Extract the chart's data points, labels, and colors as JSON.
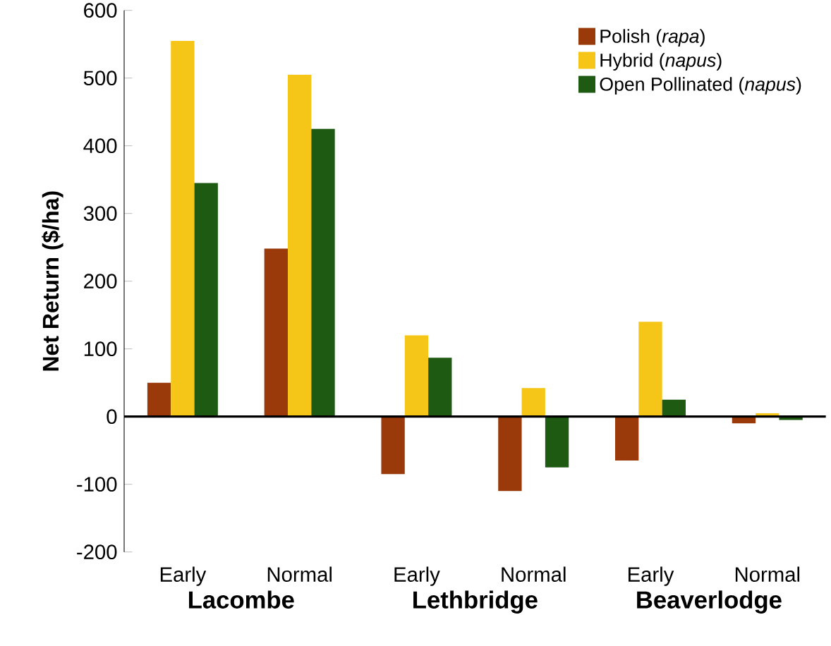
{
  "chart_data": {
    "type": "bar",
    "ylabel": "Net Return ($/ha)",
    "categories": [
      "Early",
      "Normal",
      "Early",
      "Normal",
      "Early",
      "Normal"
    ],
    "series": [
      {
        "name": "Polish (*rapa*)",
        "color": "#9a3a0a",
        "values": [
          50,
          248,
          -85,
          -110,
          -65,
          -10
        ]
      },
      {
        "name": "Hybrid (*napus*)",
        "color": "#f5c518",
        "values": [
          555,
          505,
          120,
          42,
          140,
          5
        ]
      },
      {
        "name": "Open Pollinated (*napus*)",
        "color": "#1e5a12",
        "values": [
          345,
          425,
          87,
          -75,
          25,
          -5
        ]
      }
    ],
    "ylim": [
      -200,
      600
    ],
    "yticks": [
      -200,
      -100,
      0,
      100,
      200,
      300,
      400,
      500,
      600
    ],
    "legend": "top right",
    "annotations": [
      "Lacombe",
      "Lethbridge",
      "Beaverlodge"
    ]
  }
}
